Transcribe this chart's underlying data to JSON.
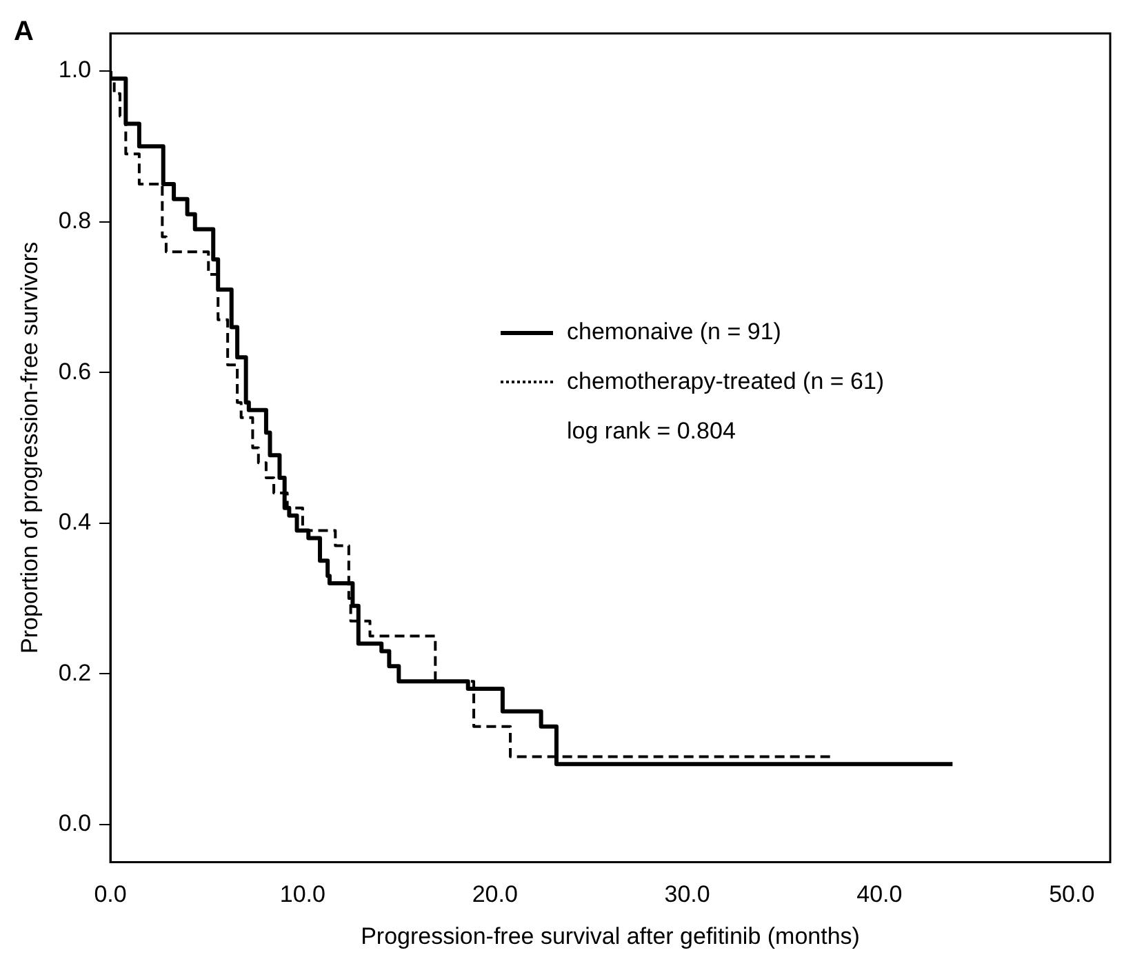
{
  "chart_data": {
    "type": "step",
    "title": "A",
    "xlabel": "Progression-free survival after gefitinib (months)",
    "ylabel": "Proportion of progression-free survivors",
    "xlim": [
      0,
      52
    ],
    "ylim": [
      -0.05,
      1.05
    ],
    "xticks": [
      {
        "value": 0,
        "label": "0.0"
      },
      {
        "value": 10,
        "label": "10.0"
      },
      {
        "value": 20,
        "label": "20.0"
      },
      {
        "value": 30,
        "label": "30.0"
      },
      {
        "value": 40,
        "label": "40.0"
      },
      {
        "value": 50,
        "label": "50.0"
      }
    ],
    "yticks": [
      {
        "value": 0,
        "label": "0.0"
      },
      {
        "value": 0.2,
        "label": "0.2"
      },
      {
        "value": 0.4,
        "label": "0.4"
      },
      {
        "value": 0.6,
        "label": "0.6"
      },
      {
        "value": 0.8,
        "label": "0.8"
      },
      {
        "value": 1,
        "label": "1.0"
      }
    ],
    "grid": false,
    "legend": "center",
    "marker": "none",
    "annotations": [
      "log rank = 0.804"
    ],
    "series": [
      {
        "name": "chemonaive (n = 91)",
        "color": "#000000",
        "line_style": "solid",
        "x": [
          0,
          0.8,
          1.5,
          2.75,
          3.3,
          4.0,
          4.4,
          5.35,
          5.6,
          6.3,
          6.6,
          7.05,
          7.2,
          8.1,
          8.3,
          8.8,
          9.06,
          9.3,
          9.7,
          10.3,
          10.9,
          11.3,
          11.4,
          12.6,
          12.9,
          13.15,
          14.1,
          14.5,
          15.0,
          18.6,
          19.8,
          20.4,
          22.4,
          23.2,
          31.7,
          43.8
        ],
        "values": [
          1.0,
          0.99,
          0.93,
          0.9,
          0.85,
          0.83,
          0.81,
          0.79,
          0.75,
          0.71,
          0.66,
          0.62,
          0.56,
          0.55,
          0.52,
          0.49,
          0.46,
          0.42,
          0.41,
          0.39,
          0.38,
          0.35,
          0.33,
          0.32,
          0.29,
          0.24,
          0.24,
          0.23,
          0.21,
          0.19,
          0.18,
          0.18,
          0.15,
          0.13,
          0.08,
          0.08
        ]
      },
      {
        "name": "chemotherapy-treated (n = 61)",
        "color": "#000000",
        "line_style": "dashed",
        "x": [
          0,
          0.2,
          0.5,
          0.8,
          1.5,
          2.7,
          2.9,
          5.1,
          5.6,
          6.1,
          6.6,
          6.8,
          7.4,
          7.7,
          8.1,
          8.5,
          9.2,
          10.0,
          11.7,
          12.4,
          12.5,
          13.5,
          16.9,
          18.9,
          20.8,
          25.6,
          37.7
        ],
        "values": [
          1.0,
          0.99,
          0.97,
          0.94,
          0.89,
          0.85,
          0.78,
          0.76,
          0.73,
          0.67,
          0.61,
          0.56,
          0.54,
          0.5,
          0.48,
          0.46,
          0.44,
          0.42,
          0.39,
          0.37,
          0.3,
          0.27,
          0.25,
          0.19,
          0.13,
          0.09,
          0.09
        ]
      }
    ]
  }
}
